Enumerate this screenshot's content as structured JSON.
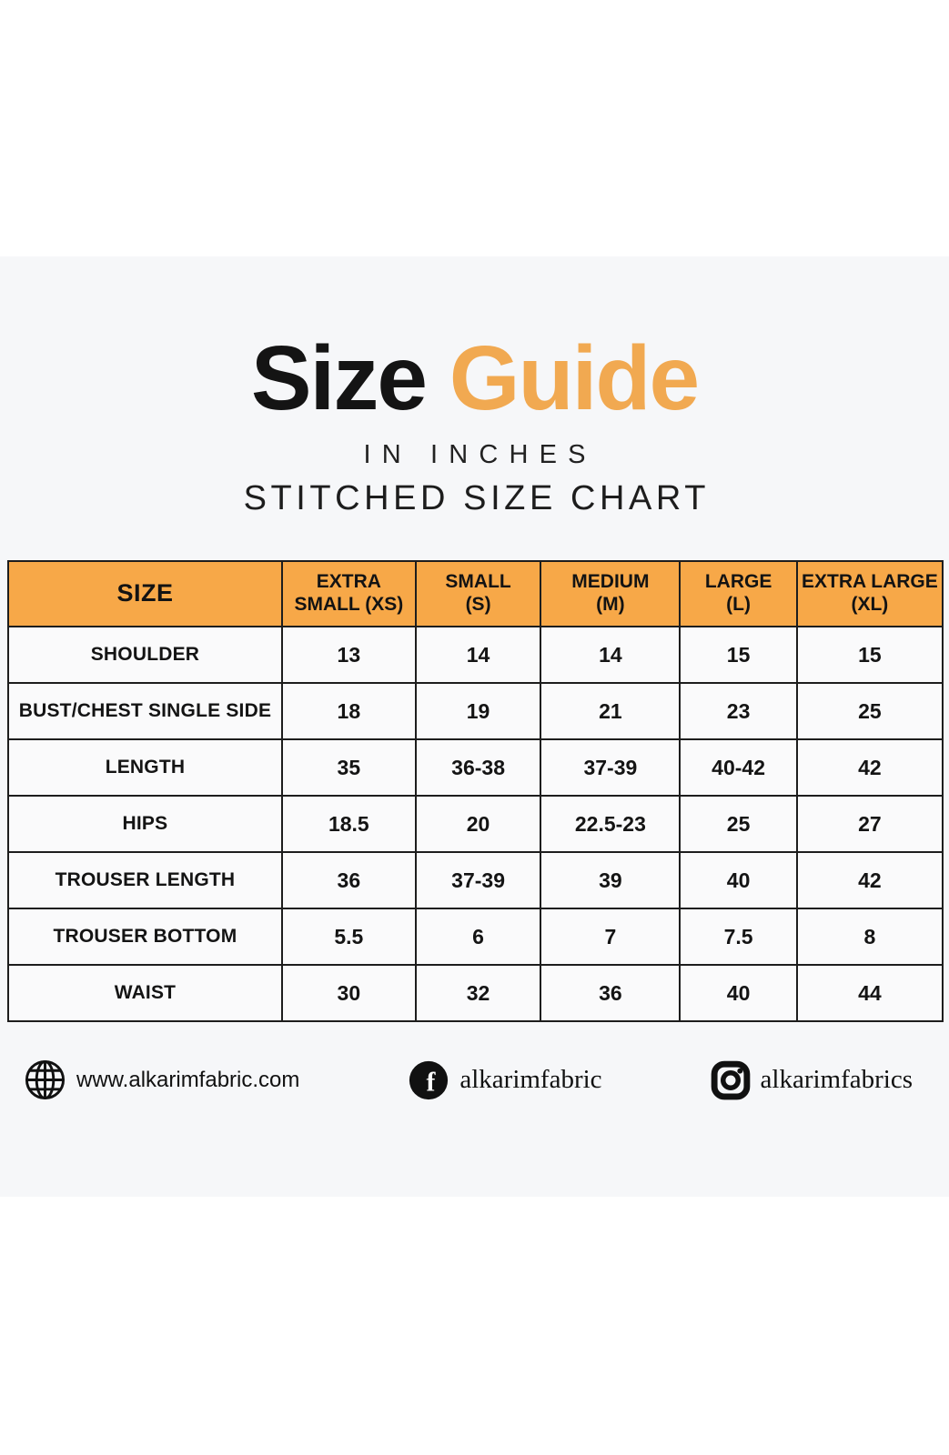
{
  "chart_data": {
    "type": "table",
    "title": "Size Guide",
    "title_parts": {
      "primary": "Size",
      "accent": "Guide"
    },
    "subtitles": {
      "units": "IN INCHES",
      "kind": "STITCHED SIZE CHART"
    },
    "columns": [
      {
        "label": "SIZE",
        "line1": "SIZE",
        "line2": ""
      },
      {
        "label": "EXTRA SMALL (XS)",
        "line1": "EXTRA",
        "line2": "SMALL (XS)"
      },
      {
        "label": "SMALL (S)",
        "line1": "SMALL",
        "line2": "(S)"
      },
      {
        "label": "MEDIUM (M)",
        "line1": "MEDIUM",
        "line2": "(M)"
      },
      {
        "label": "LARGE (L)",
        "line1": "LARGE",
        "line2": "(L)"
      },
      {
        "label": "EXTRA LARGE (XL)",
        "line1": "EXTRA LARGE",
        "line2": "(XL)"
      }
    ],
    "rows": [
      {
        "label": "SHOULDER",
        "values": [
          "13",
          "14",
          "14",
          "15",
          "15"
        ]
      },
      {
        "label": "BUST/CHEST SINGLE SIDE",
        "values": [
          "18",
          "19",
          "21",
          "23",
          "25"
        ]
      },
      {
        "label": "LENGTH",
        "values": [
          "35",
          "36-38",
          "37-39",
          "40-42",
          "42"
        ]
      },
      {
        "label": "HIPS",
        "values": [
          "18.5",
          "20",
          "22.5-23",
          "25",
          "27"
        ]
      },
      {
        "label": "TROUSER LENGTH",
        "values": [
          "36",
          "37-39",
          "39",
          "40",
          "42"
        ]
      },
      {
        "label": "TROUSER BOTTOM",
        "values": [
          "5.5",
          "6",
          "7",
          "7.5",
          "8"
        ]
      },
      {
        "label": "WAIST",
        "values": [
          "30",
          "32",
          "36",
          "40",
          "44"
        ]
      }
    ]
  },
  "footer": {
    "items": [
      {
        "icon": "globe-icon",
        "text": "www.alkarimfabric.com"
      },
      {
        "icon": "facebook-icon",
        "text": "alkarimfabric"
      },
      {
        "icon": "instagram-icon",
        "text": "alkarimfabrics"
      }
    ]
  },
  "colors": {
    "title_accent_orange": "#f1a951",
    "table_header_orange": "#f7a848",
    "band_background": "#f6f7f9",
    "cell_background": "#fafafb",
    "border_black": "#1d1d1d",
    "text_black": "#141414"
  }
}
